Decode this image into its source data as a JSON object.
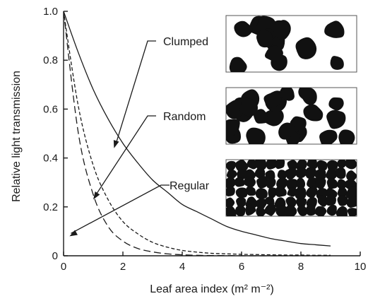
{
  "chart_data": {
    "type": "line",
    "title": "",
    "xlabel": "Leaf area index (m² m⁻²)",
    "ylabel": "Relative light transmission",
    "xlim": [
      0,
      10
    ],
    "ylim": [
      0,
      1.0
    ],
    "x_ticks": [
      0,
      2,
      4,
      6,
      8,
      10
    ],
    "x_tick_labels": [
      "0",
      "2",
      "4",
      "6",
      "8",
      "10"
    ],
    "y_ticks": [
      0,
      0.2,
      0.4,
      0.6,
      0.8,
      1.0
    ],
    "y_tick_labels": [
      "0",
      "0.2",
      "0.4",
      "0.6",
      "0.8",
      "1.0"
    ],
    "grid": false,
    "series": [
      {
        "name": "Clumped",
        "style": "solid",
        "x": [
          0,
          0.5,
          1,
          1.5,
          2,
          2.5,
          3,
          3.5,
          4,
          4.5,
          5,
          5.5,
          6,
          6.5,
          7,
          7.5,
          8,
          8.5,
          9
        ],
        "values": [
          1.0,
          0.83,
          0.68,
          0.56,
          0.46,
          0.38,
          0.31,
          0.26,
          0.21,
          0.18,
          0.15,
          0.12,
          0.1,
          0.085,
          0.07,
          0.06,
          0.05,
          0.045,
          0.04
        ]
      },
      {
        "name": "Random",
        "style": "short-dash",
        "x": [
          0,
          0.5,
          1,
          1.5,
          2,
          2.5,
          3,
          3.5,
          4,
          4.5,
          5,
          5.5,
          6,
          6.5,
          7,
          7.5,
          8,
          8.5,
          9
        ],
        "values": [
          1.0,
          0.61,
          0.37,
          0.23,
          0.14,
          0.09,
          0.055,
          0.035,
          0.022,
          0.015,
          0.01,
          0.008,
          0.006,
          0.005,
          0.004,
          0.003,
          0.003,
          0.002,
          0.002
        ]
      },
      {
        "name": "Regular",
        "style": "long-dash",
        "x": [
          0,
          0.5,
          1,
          1.5,
          2,
          2.5,
          3,
          3.5,
          4,
          4.5,
          5,
          5.5,
          6,
          6.5,
          7,
          7.5,
          8,
          8.5,
          9
        ],
        "values": [
          1.0,
          0.5,
          0.25,
          0.12,
          0.06,
          0.03,
          0.016,
          0.008,
          0.004,
          0.002,
          0.001,
          0.001,
          0.0,
          0.0,
          0.0,
          0.0,
          0.0,
          0.0,
          0.0
        ]
      }
    ],
    "annotations": [
      {
        "label": "Clumped",
        "points_to": {
          "x": 1.7,
          "y": 0.44
        }
      },
      {
        "label": "Random",
        "points_to": {
          "x": 1.0,
          "y": 0.23
        }
      },
      {
        "label": "Regular",
        "points_to": {
          "x": 0.2,
          "y": 0.08
        }
      }
    ],
    "insets": [
      {
        "name": "clumped-canopy",
        "pattern": "clumped"
      },
      {
        "name": "random-canopy",
        "pattern": "random"
      },
      {
        "name": "regular-canopy",
        "pattern": "regular"
      }
    ],
    "colors": {
      "ink": "#1a1a1a",
      "leaf": "#111111"
    }
  }
}
